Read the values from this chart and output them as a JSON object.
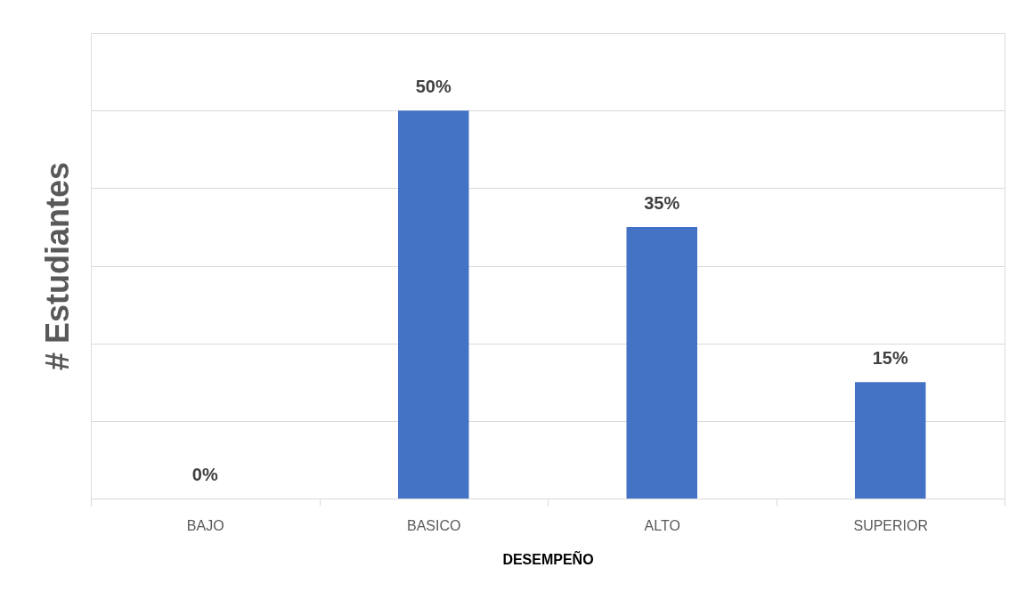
{
  "chart_data": {
    "type": "bar",
    "xlabel": "DESEMPEÑO",
    "ylabel": "# Estudiantes",
    "categories": [
      "BAJO",
      "BASICO",
      "ALTO",
      "SUPERIOR"
    ],
    "values": [
      0,
      50,
      35,
      15
    ],
    "color": "#4472c4",
    "value_labels": [
      "0%",
      "50%",
      "35%",
      "15%"
    ],
    "ylim": [
      0,
      60
    ],
    "yticks": [
      {
        "value": 0,
        "label": null
      },
      {
        "value": 10,
        "label": null
      },
      {
        "value": 20,
        "label": null
      },
      {
        "value": 30,
        "label": null
      },
      {
        "value": 40,
        "label": null
      },
      {
        "value": 50,
        "label": null
      },
      {
        "value": 60,
        "label": null
      }
    ],
    "grid": "y",
    "tick_labels": "x"
  }
}
